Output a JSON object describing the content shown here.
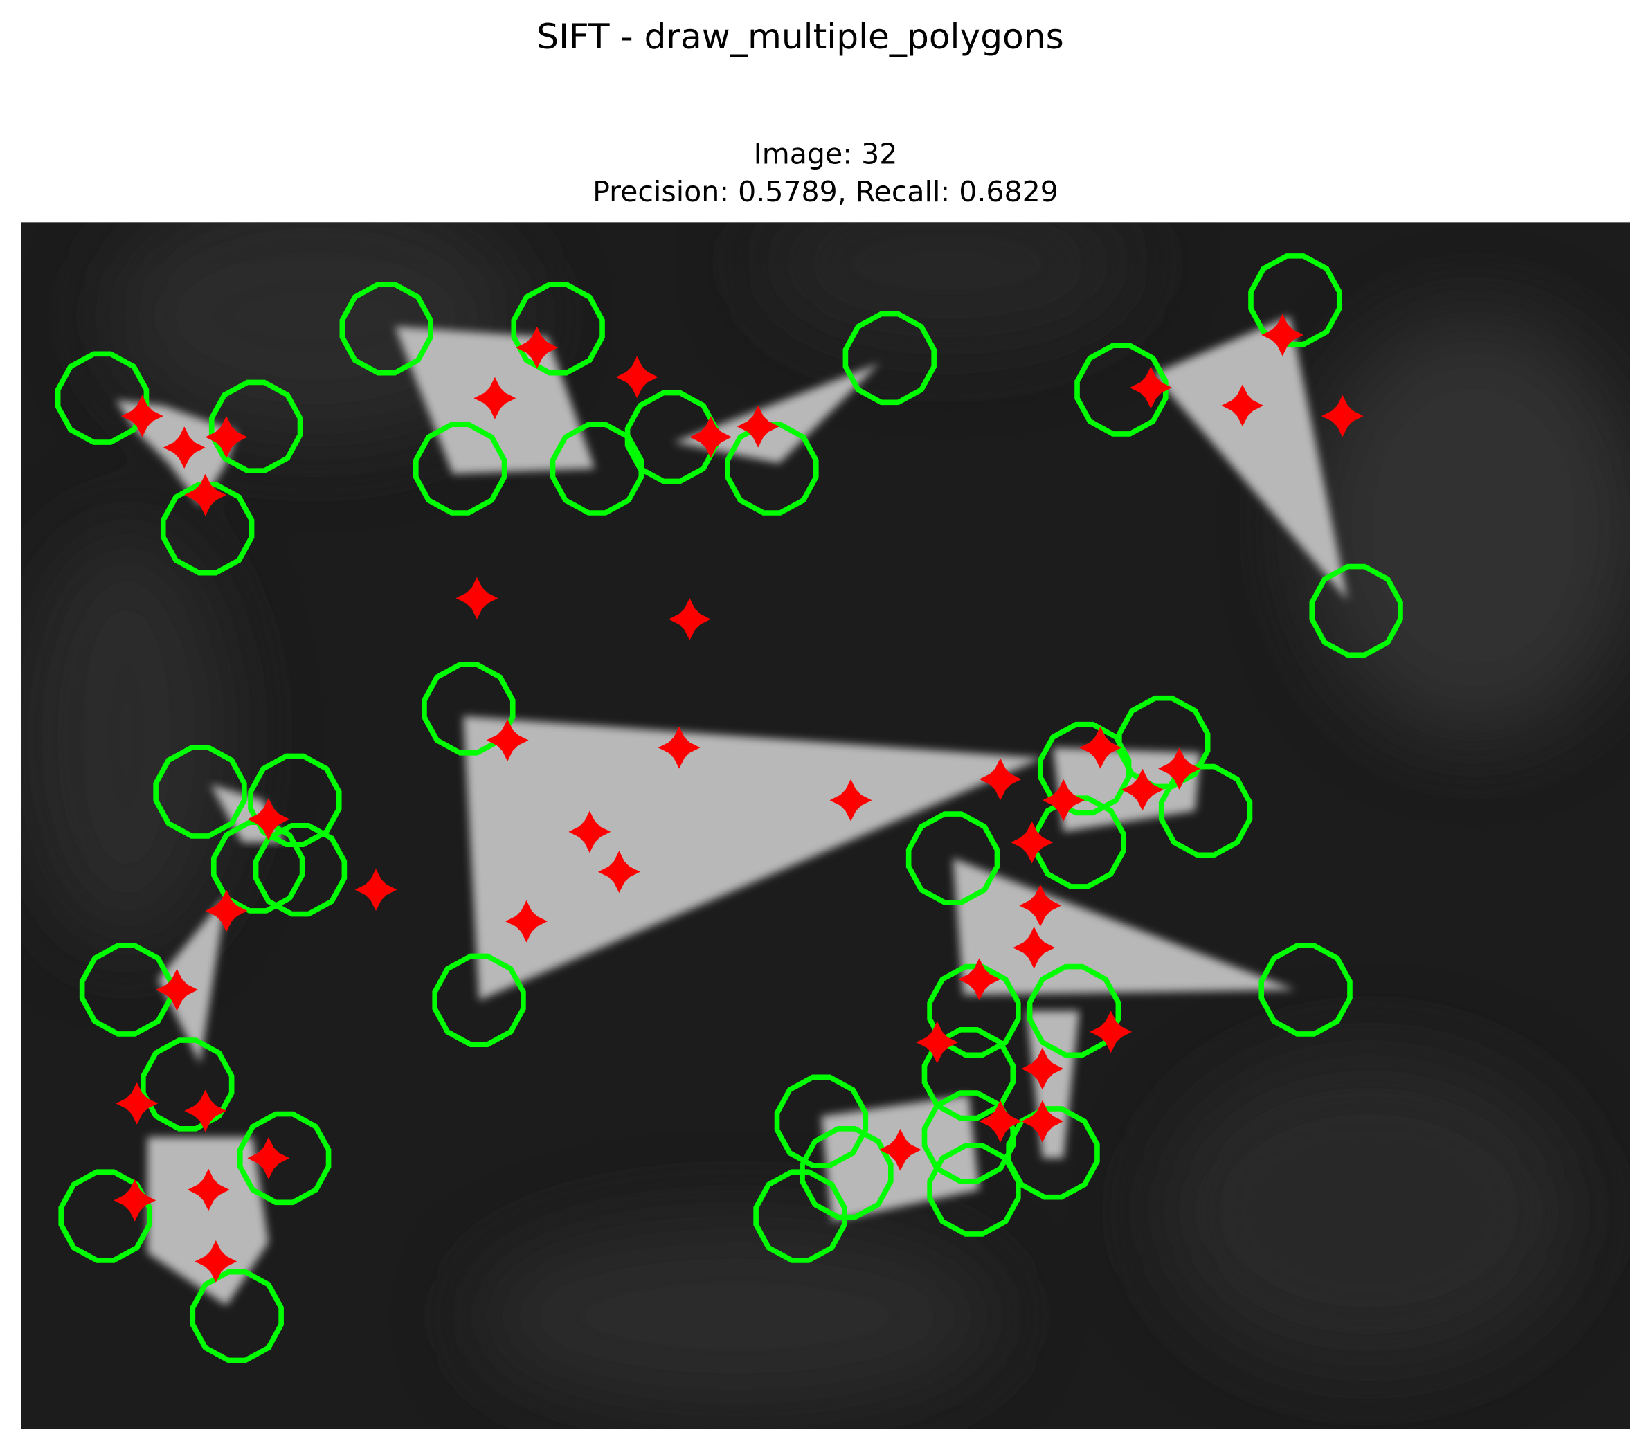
{
  "header": {
    "title": "SIFT - draw_multiple_polygons"
  },
  "panel": {
    "image_label": "Image: 32",
    "metrics": "Precision: 0.5789, Recall: 0.6829"
  }
}
